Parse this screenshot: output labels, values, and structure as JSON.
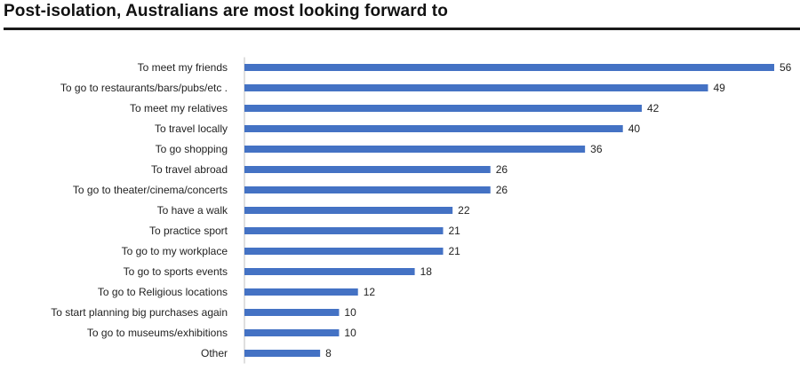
{
  "header": {
    "title": "Post-isolation, Australians are most looking forward to"
  },
  "colors": {
    "bar": "#4472c4",
    "axis": "#bfbfbf",
    "rule": "#1a1a1a"
  },
  "chart_data": {
    "type": "bar",
    "orientation": "horizontal",
    "title": "Post-isolation, Australians are most looking forward to",
    "xlabel": "",
    "ylabel": "",
    "xlim": [
      0,
      56
    ],
    "grid": false,
    "legend": "none",
    "categories": [
      "To meet my friends",
      "To go to restaurants/bars/pubs/etc  .",
      "To meet my relatives",
      "To travel locally",
      "To go shopping",
      "To travel abroad",
      "To go to theater/cinema/concerts",
      "To have a walk",
      "To practice sport",
      "To go to my workplace",
      "To go to sports events",
      "To go to Religious locations",
      "To start planning big purchases again",
      "To go to museums/exhibitions",
      "Other"
    ],
    "values": [
      56,
      49,
      42,
      40,
      36,
      26,
      26,
      22,
      21,
      21,
      18,
      12,
      10,
      10,
      8
    ]
  }
}
